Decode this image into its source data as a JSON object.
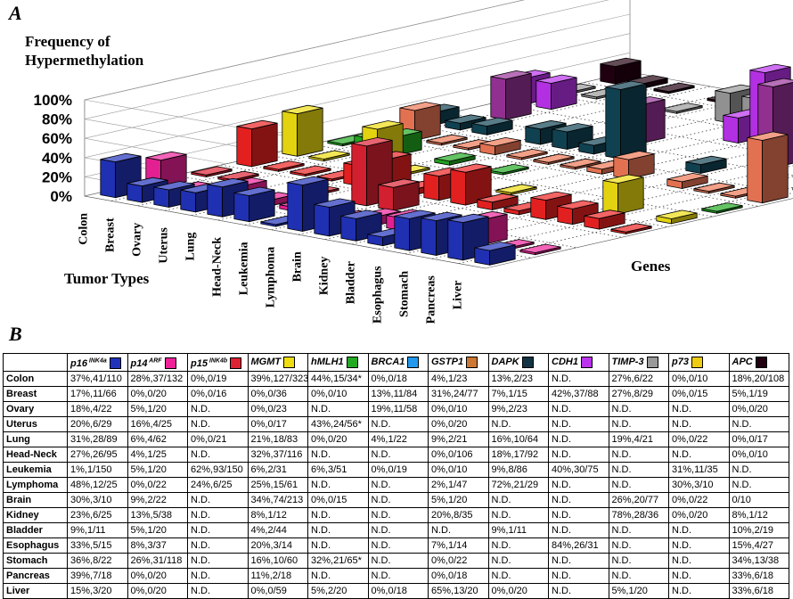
{
  "panel_a_label": "A",
  "panel_b_label": "B",
  "chart_data": {
    "type": "bar3d",
    "ylabel": "Frequency of Hypermethylation",
    "ylabel_line1": "Frequency of",
    "ylabel_line2": "Hypermethylation",
    "xlabel": "Tumor Types",
    "zlabel": "Genes",
    "ylim": [
      0,
      100
    ],
    "yticks": [
      "0%",
      "20%",
      "40%",
      "60%",
      "80%",
      "100%"
    ],
    "grid": true,
    "tumor_types": [
      "Colon",
      "Breast",
      "Ovary",
      "Uterus",
      "Lung",
      "Head-Neck",
      "Leukemia",
      "Lymphoma",
      "Brain",
      "Kidney",
      "Bladder",
      "Esophagus",
      "Stomach",
      "Pancreas",
      "Liver"
    ],
    "genes": [
      "p16",
      "p14",
      "p15",
      "MGMT",
      "hMLH1",
      "BRCA1",
      "GSTP1",
      "DAPK",
      "CDH1",
      "TIMP-3",
      "p73",
      "APC"
    ],
    "gene_colors": [
      "#2233bb",
      "#ee2299",
      "#dd2233",
      "#ee2222",
      "#eedd11",
      "#22aa22",
      "#ee7755",
      "#114455",
      "#993399",
      "#bb33ee",
      "#999999",
      "#220011"
    ],
    "values": [
      [
        37,
        28,
        0,
        39,
        44,
        0,
        4,
        13,
        null,
        27,
        0,
        18
      ],
      [
        17,
        0,
        0,
        0,
        0,
        13,
        31,
        7,
        42,
        27,
        0,
        5
      ],
      [
        18,
        5,
        null,
        0,
        null,
        19,
        0,
        9,
        null,
        null,
        null,
        0
      ],
      [
        20,
        16,
        null,
        0,
        43,
        null,
        0,
        null,
        null,
        null,
        null,
        null
      ],
      [
        31,
        6,
        0,
        21,
        0,
        4,
        9,
        16,
        null,
        19,
        0,
        0
      ],
      [
        27,
        4,
        null,
        32,
        null,
        null,
        0,
        18,
        null,
        null,
        null,
        0
      ],
      [
        1,
        5,
        62,
        6,
        6,
        0,
        0,
        9,
        40,
        null,
        31,
        null
      ],
      [
        48,
        0,
        24,
        25,
        null,
        null,
        2,
        72,
        null,
        null,
        30,
        null
      ],
      [
        30,
        9,
        null,
        34,
        0,
        null,
        5,
        null,
        null,
        26,
        0,
        0
      ],
      [
        23,
        13,
        null,
        8,
        null,
        null,
        20,
        null,
        null,
        78,
        0,
        8
      ],
      [
        9,
        5,
        null,
        4,
        null,
        null,
        null,
        9,
        null,
        null,
        null,
        10
      ],
      [
        33,
        8,
        null,
        20,
        null,
        null,
        7,
        null,
        84,
        null,
        null,
        15
      ],
      [
        36,
        26,
        null,
        16,
        32,
        null,
        0,
        null,
        null,
        null,
        null,
        34
      ],
      [
        39,
        0,
        null,
        11,
        null,
        null,
        0,
        null,
        null,
        null,
        null,
        33
      ],
      [
        15,
        0,
        null,
        0,
        5,
        0,
        65,
        0,
        null,
        5,
        null,
        33
      ]
    ]
  },
  "table": {
    "headers": [
      {
        "name": "p16",
        "sup": "INK4a",
        "color": "#2233bb"
      },
      {
        "name": "p14",
        "sup": "ARF",
        "color": "#ee2299"
      },
      {
        "name": "p15",
        "sup": "INK4b",
        "color": "#dd2233"
      },
      {
        "name": "MGMT",
        "sup": "",
        "color": "#eedd11"
      },
      {
        "name": "hMLH1",
        "sup": "",
        "color": "#22aa22"
      },
      {
        "name": "BRCA1",
        "sup": "",
        "color": "#2299ee"
      },
      {
        "name": "GSTP1",
        "sup": "",
        "color": "#cc7733"
      },
      {
        "name": "DAPK",
        "sup": "",
        "color": "#113344"
      },
      {
        "name": "CDH1",
        "sup": "",
        "color": "#bb33ee"
      },
      {
        "name": "TIMP-3",
        "sup": "",
        "color": "#999999"
      },
      {
        "name": "p73",
        "sup": "",
        "color": "#eecc11"
      },
      {
        "name": "APC",
        "sup": "",
        "color": "#220011"
      }
    ],
    "rows": [
      {
        "name": "Colon",
        "cells": [
          "37%,41/110",
          "28%,37/132",
          "0%,0/19",
          "39%,127/323",
          "44%,15/34*",
          "0%,0/18",
          "4%,1/23",
          "13%,2/23",
          "N.D.",
          "27%,6/22",
          "0%,0/10",
          "18%,20/108"
        ]
      },
      {
        "name": "Breast",
        "cells": [
          "17%,11/66",
          "0%,0/20",
          "0%,0/16",
          "0%,0/36",
          "0%,0/10",
          "13%,11/84",
          "31%,24/77",
          "7%,1/15",
          "42%,37/88",
          "27%,8/29",
          "0%,0/15",
          "5%,1/19"
        ]
      },
      {
        "name": "Ovary",
        "cells": [
          "18%,4/22",
          "5%,1/20",
          "N.D.",
          "0%,0/23",
          "N.D.",
          "19%,11/58",
          "0%,0/10",
          "9%,2/23",
          "N.D.",
          "N.D.",
          "N.D.",
          "0%,0/20"
        ]
      },
      {
        "name": "Uterus",
        "cells": [
          "20%,6/29",
          "16%,4/25",
          "N.D.",
          "0%,0/17",
          "43%,24/56*",
          "N.D.",
          "0%,0/20",
          "N.D.",
          "N.D.",
          "N.D.",
          "N.D.",
          "N.D."
        ]
      },
      {
        "name": "Lung",
        "cells": [
          "31%,28/89",
          "6%,4/62",
          "0%,0/21",
          "21%,18/83",
          "0%,0/20",
          "4%,1/22",
          "9%,2/21",
          "16%,10/64",
          "N.D.",
          "19%,4/21",
          "0%,0/22",
          "0%,0/17"
        ]
      },
      {
        "name": "Head-Neck",
        "cells": [
          "27%,26/95",
          "4%,1/25",
          "N.D.",
          "32%,37/116",
          "N.D.",
          "N.D.",
          "0%,0/106",
          "18%,17/92",
          "N.D.",
          "N.D.",
          "N.D.",
          "0%,0/10"
        ]
      },
      {
        "name": "Leukemia",
        "cells": [
          "1%,1/150",
          "5%,1/20",
          "62%,93/150",
          "6%,2/31",
          "6%,3/51",
          "0%,0/19",
          "0%,0/10",
          "9%,8/86",
          "40%,30/75",
          "N.D.",
          "31%,11/35",
          "N.D."
        ]
      },
      {
        "name": "Lymphoma",
        "cells": [
          "48%,12/25",
          "0%,0/22",
          "24%,6/25",
          "25%,15/61",
          "N.D.",
          "N.D.",
          "2%,1/47",
          "72%,21/29",
          "N.D.",
          "N.D.",
          "30%,3/10",
          "N.D."
        ]
      },
      {
        "name": "Brain",
        "cells": [
          "30%,3/10",
          "9%,2/22",
          "N.D.",
          "34%,74/213",
          "0%,0/15",
          "N.D.",
          "5%,1/20",
          "N.D.",
          "N.D.",
          "26%,20/77",
          "0%,0/22",
          "0/10"
        ]
      },
      {
        "name": "Kidney",
        "cells": [
          "23%,6/25",
          "13%,5/38",
          "N.D.",
          "8%,1/12",
          "N.D.",
          "N.D.",
          "20%,8/35",
          "N.D.",
          "N.D.",
          "78%,28/36",
          "0%,0/20",
          "8%,1/12"
        ]
      },
      {
        "name": "Bladder",
        "cells": [
          "9%,1/11",
          "5%,1/20",
          "N.D.",
          "4%,2/44",
          "N.D.",
          "N.D.",
          "N.D.",
          "9%,1/11",
          "N.D.",
          "N.D.",
          "N.D.",
          "10%,2/19"
        ]
      },
      {
        "name": "Esophagus",
        "cells": [
          "33%,5/15",
          "8%,3/37",
          "N.D.",
          "20%,3/14",
          "N.D.",
          "N.D.",
          "7%,1/14",
          "N.D.",
          "84%,26/31",
          "N.D.",
          "N.D.",
          "15%,4/27"
        ]
      },
      {
        "name": "Stomach",
        "cells": [
          "36%,8/22",
          "26%,31/118",
          "N.D.",
          "16%,10/60",
          "32%,21/65*",
          "N.D.",
          "0%,0/22",
          "N.D.",
          "N.D.",
          "N.D.",
          "N.D.",
          "34%,13/38"
        ]
      },
      {
        "name": "Pancreas",
        "cells": [
          "39%,7/18",
          "0%,0/20",
          "N.D.",
          "11%,2/18",
          "N.D.",
          "N.D.",
          "0%,0/18",
          "N.D.",
          "N.D.",
          "N.D.",
          "N.D.",
          "33%,6/18"
        ]
      },
      {
        "name": "Liver",
        "cells": [
          "15%,3/20",
          "0%,0/20",
          "N.D.",
          "0%,0/59",
          "5%,2/20",
          "0%,0/18",
          "65%,13/20",
          "0%,0/20",
          "N.D.",
          "5%,1/20",
          "N.D.",
          "33%,6/18"
        ]
      }
    ]
  }
}
